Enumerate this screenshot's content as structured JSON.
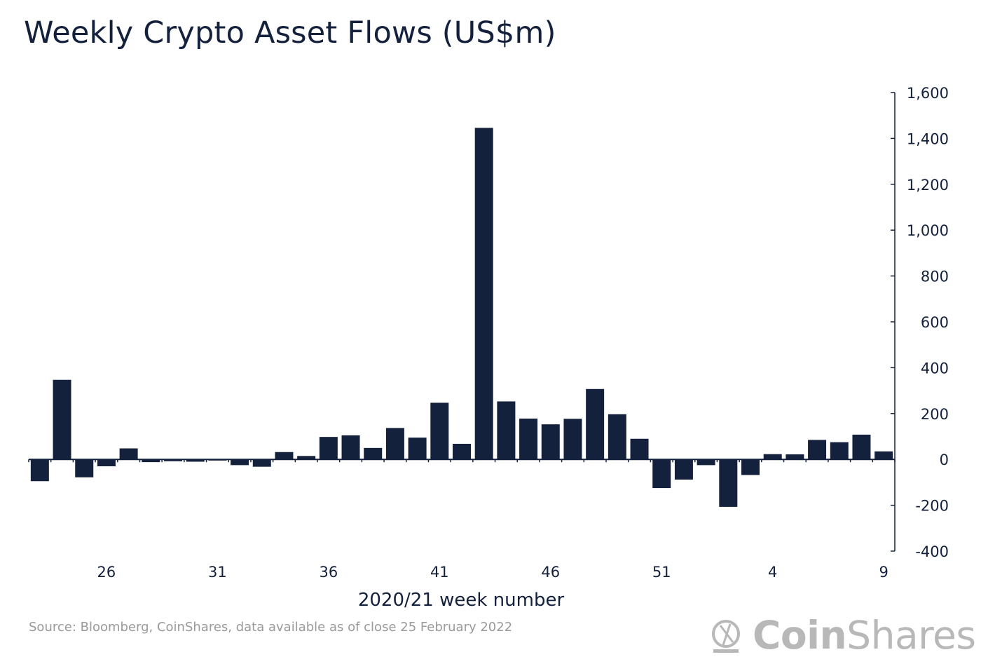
{
  "chart_data": {
    "type": "bar",
    "title": "Weekly Crypto Asset Flows (US$m)",
    "xlabel": "2020/21 week number",
    "ylabel": "",
    "ylim": [
      -400,
      1600
    ],
    "y_ticks": [
      1600,
      1400,
      1200,
      1000,
      800,
      600,
      400,
      200,
      0,
      -200,
      -400
    ],
    "y_tick_labels": [
      "1,600",
      "1,400",
      "1,200",
      "1,000",
      "800",
      "600",
      "400",
      "200",
      "0",
      "-200",
      "-400"
    ],
    "y_axis_position": "right",
    "grid": false,
    "bar_color": "#14213d",
    "categories": [
      "23",
      "24",
      "25",
      "26",
      "27",
      "28",
      "29",
      "30",
      "31",
      "32",
      "33",
      "34",
      "35",
      "36",
      "37",
      "38",
      "39",
      "40",
      "41",
      "42",
      "43",
      "44",
      "45",
      "46",
      "47",
      "48",
      "49",
      "50",
      "51",
      "52",
      "1",
      "2",
      "3",
      "4",
      "5",
      "6",
      "7",
      "8",
      "9"
    ],
    "values": [
      -95,
      347,
      -78,
      -30,
      48,
      -12,
      -8,
      -10,
      -5,
      -25,
      -32,
      32,
      15,
      98,
      105,
      50,
      137,
      95,
      247,
      68,
      1446,
      253,
      178,
      153,
      177,
      307,
      197,
      90,
      -125,
      -88,
      -25,
      -207,
      -68,
      23,
      22,
      85,
      75,
      108,
      35
    ],
    "x_tick_labels": [
      {
        "index": 3,
        "label": "26"
      },
      {
        "index": 8,
        "label": "31"
      },
      {
        "index": 13,
        "label": "36"
      },
      {
        "index": 18,
        "label": "41"
      },
      {
        "index": 23,
        "label": "46"
      },
      {
        "index": 28,
        "label": "51"
      },
      {
        "index": 33,
        "label": "4"
      },
      {
        "index": 38,
        "label": "9"
      }
    ]
  },
  "footer": {
    "source": "Source: Bloomberg, CoinShares, data available as of close 25 February 2022"
  },
  "logo": {
    "part1": "Coin",
    "part2": "Shares"
  }
}
